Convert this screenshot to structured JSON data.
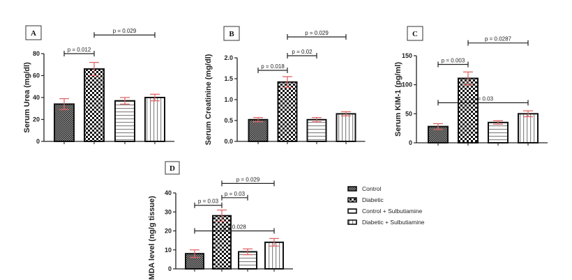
{
  "chart_data": [
    {
      "type": "bar",
      "panel": "A",
      "title": "",
      "xlabel": "",
      "ylabel": "Serum Urea (mg/dl)",
      "ylim": [
        0,
        80
      ],
      "yticks": [
        0,
        20,
        40,
        60,
        80
      ],
      "categories": [
        "Control",
        "Diabetic",
        "Control + Sulbutiamine",
        "Diabetic + Sulbutiamine"
      ],
      "values": [
        34,
        66,
        37,
        40
      ],
      "errors": [
        5,
        6,
        3,
        3
      ],
      "comparisons": [
        {
          "from": 0,
          "to": 1,
          "label": "p = 0.012",
          "level": 80
        },
        {
          "from": 1,
          "to": 3,
          "label": "p = 0.029",
          "level": 97
        }
      ]
    },
    {
      "type": "bar",
      "panel": "B",
      "title": "",
      "xlabel": "",
      "ylabel": "Serum Creatinine (mg/dl)",
      "ylim": [
        0,
        2.0
      ],
      "yticks": [
        0.0,
        0.5,
        1.0,
        1.5,
        2.0
      ],
      "ytick_labels": [
        "0.0",
        "0.5",
        "1.0",
        "1.5",
        "2.0"
      ],
      "categories": [
        "Control",
        "Diabetic",
        "Control + Sulbutiamine",
        "Diabetic + Sulbutiamine"
      ],
      "values": [
        0.52,
        1.42,
        0.52,
        0.66
      ],
      "errors": [
        0.05,
        0.13,
        0.05,
        0.05
      ],
      "comparisons": [
        {
          "from": 0,
          "to": 1,
          "label": "p = 0.018",
          "level": 1.7
        },
        {
          "from": 1,
          "to": 2,
          "label": "p = 0.02",
          "level": 2.05
        },
        {
          "from": 1,
          "to": 3,
          "label": "p = 0.029",
          "level": 2.5
        }
      ]
    },
    {
      "type": "bar",
      "panel": "C",
      "title": "",
      "xlabel": "",
      "ylabel": "Serum KIM-1 (pg/ml)",
      "ylim": [
        0,
        150
      ],
      "yticks": [
        0,
        50,
        100,
        150
      ],
      "categories": [
        "Control",
        "Diabetic",
        "Control + Sulbutiamine",
        "Diabetic + Sulbutiamine"
      ],
      "values": [
        28,
        111,
        35,
        50
      ],
      "errors": [
        5,
        11,
        3,
        5
      ],
      "comparisons": [
        {
          "from": 0,
          "to": 1,
          "label": "p = 0.003",
          "level": 135
        },
        {
          "from": 1,
          "to": 3,
          "label": "p = 0.0287",
          "level": 172
        },
        {
          "from": 0,
          "to": 3,
          "label": "p = 0.03",
          "level": 69
        }
      ]
    },
    {
      "type": "bar",
      "panel": "D",
      "title": "",
      "xlabel": "",
      "ylabel": "MDA level (ng/g tissue)",
      "ylim": [
        0,
        40
      ],
      "yticks": [
        0,
        10,
        20,
        30,
        40
      ],
      "categories": [
        "Control",
        "Diabetic",
        "Control + Sulbutiamine",
        "Diabetic + Sulbutiamine"
      ],
      "values": [
        8,
        28,
        9,
        14
      ],
      "errors": [
        2,
        3,
        1.5,
        2
      ],
      "comparisons": [
        {
          "from": 0,
          "to": 1,
          "label": "p = 0.03",
          "level": 33.5
        },
        {
          "from": 1,
          "to": 2,
          "label": "p = 0.03",
          "level": 37.5
        },
        {
          "from": 1,
          "to": 3,
          "label": "p = 0.029",
          "level": 45
        },
        {
          "from": 0,
          "to": 3,
          "label": "p = 0.028",
          "level": 20
        }
      ]
    }
  ],
  "legend": {
    "position": "right",
    "items": [
      {
        "label": "Control",
        "pattern": "fine-check"
      },
      {
        "label": "Diabetic",
        "pattern": "coarse-check"
      },
      {
        "label": "Control + Sulbutiamine",
        "pattern": "horizontal-lines"
      },
      {
        "label": "Diabetic + Sulbutiamine",
        "pattern": "vertical-lines"
      }
    ]
  },
  "colors": {
    "bar_outline": "#111111",
    "error_bar": "#e06666",
    "axis": "#222222"
  }
}
